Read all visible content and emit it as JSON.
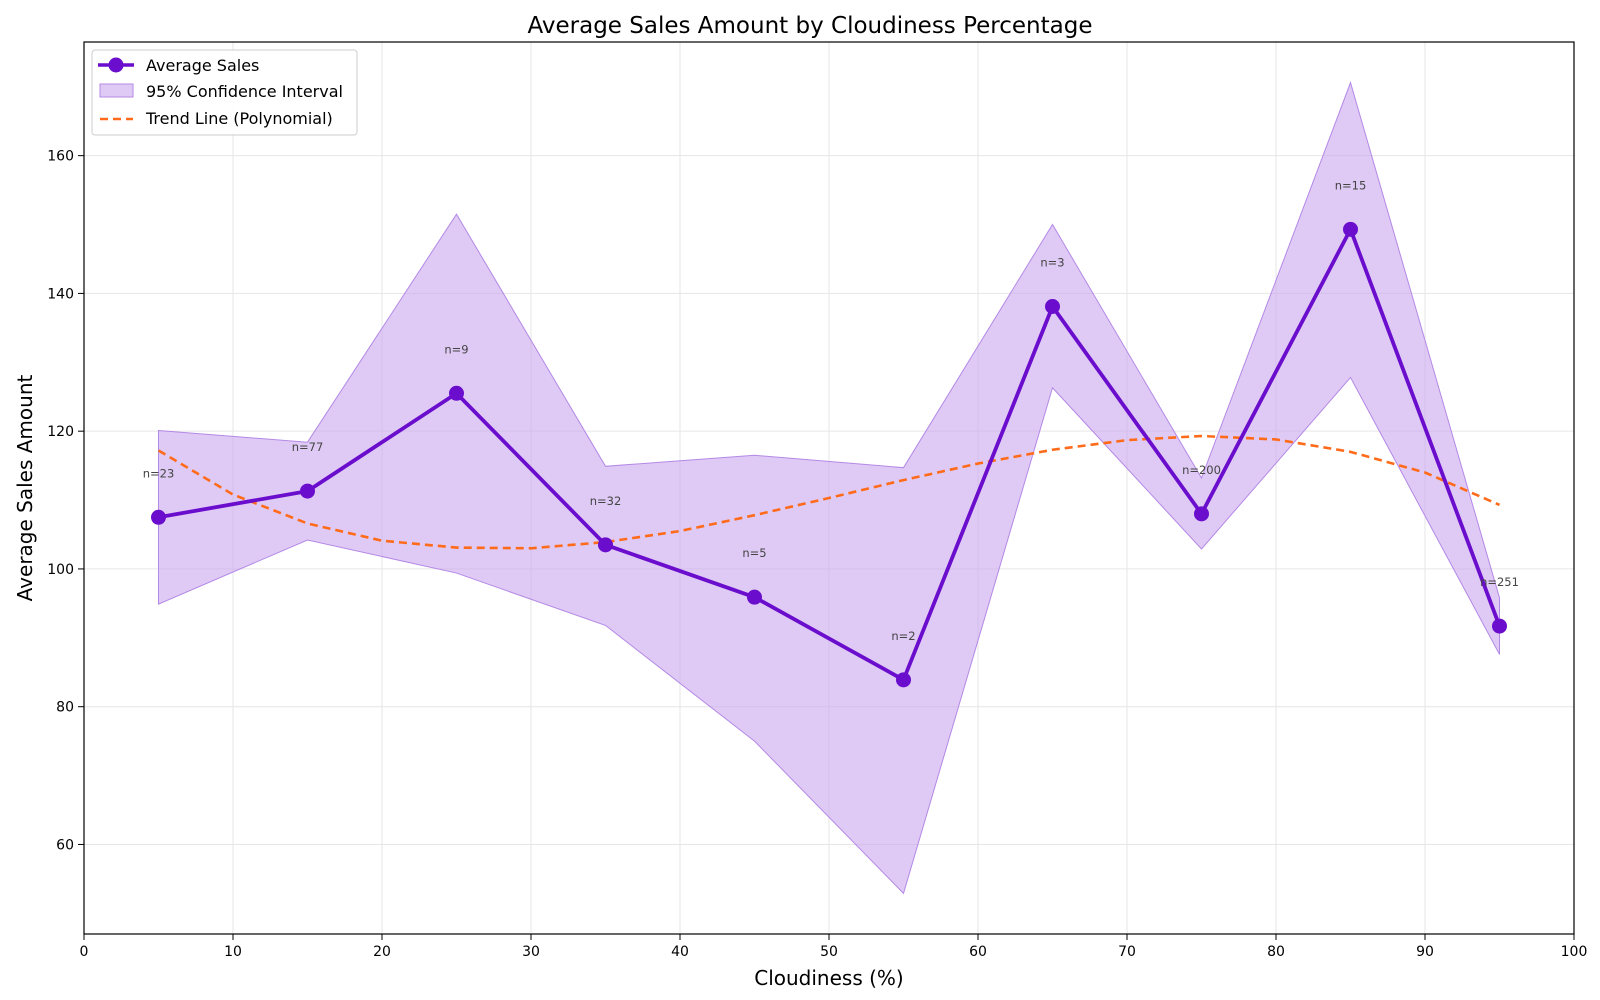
{
  "chart_data": {
    "type": "line",
    "title": "Average Sales Amount by Cloudiness Percentage",
    "xlabel": "Cloudiness (%)",
    "ylabel": "Average Sales Amount",
    "xlim": [
      0,
      100
    ],
    "ylim": [
      47,
      176.5
    ],
    "x_ticks": [
      0,
      10,
      20,
      30,
      40,
      50,
      60,
      70,
      80,
      90,
      100
    ],
    "y_ticks": [
      60,
      80,
      100,
      120,
      140,
      160
    ],
    "grid": true,
    "legend_position": "upper left",
    "x": [
      5,
      15,
      25,
      35,
      45,
      55,
      65,
      75,
      85,
      95
    ],
    "series": [
      {
        "name": "Average Sales",
        "kind": "line-markers",
        "color": "#6a0dcc",
        "values": [
          107.5,
          111.3,
          125.5,
          103.5,
          95.9,
          83.9,
          138.1,
          108.0,
          149.3,
          91.7
        ]
      },
      {
        "name": "95% Confidence Interval",
        "kind": "band",
        "color": "#c9a6ee",
        "lower": [
          94.9,
          104.2,
          99.4,
          91.8,
          75.0,
          52.9,
          126.3,
          102.9,
          127.8,
          87.6
        ],
        "upper": [
          120.1,
          118.4,
          151.5,
          114.9,
          116.5,
          114.7,
          150.0,
          113.2,
          170.6,
          95.8
        ]
      },
      {
        "name": "Trend Line (Polynomial)",
        "kind": "dashed-line",
        "color": "#ff6b1a",
        "points": [
          [
            5,
            117.2
          ],
          [
            10,
            110.8
          ],
          [
            15,
            106.6
          ],
          [
            20,
            104.1
          ],
          [
            25,
            103.1
          ],
          [
            30,
            103.0
          ],
          [
            35,
            103.9
          ],
          [
            40,
            105.5
          ],
          [
            45,
            107.8
          ],
          [
            50,
            110.3
          ],
          [
            55,
            112.9
          ],
          [
            60,
            115.3
          ],
          [
            65,
            117.3
          ],
          [
            70,
            118.7
          ],
          [
            75,
            119.3
          ],
          [
            80,
            118.8
          ],
          [
            85,
            117.0
          ],
          [
            90,
            114.0
          ],
          [
            95,
            109.3
          ]
        ]
      }
    ],
    "annotations": [
      "n=23",
      "n=77",
      "n=9",
      "n=32",
      "n=5",
      "n=2",
      "n=3",
      "n=200",
      "n=15",
      "n=251"
    ]
  }
}
